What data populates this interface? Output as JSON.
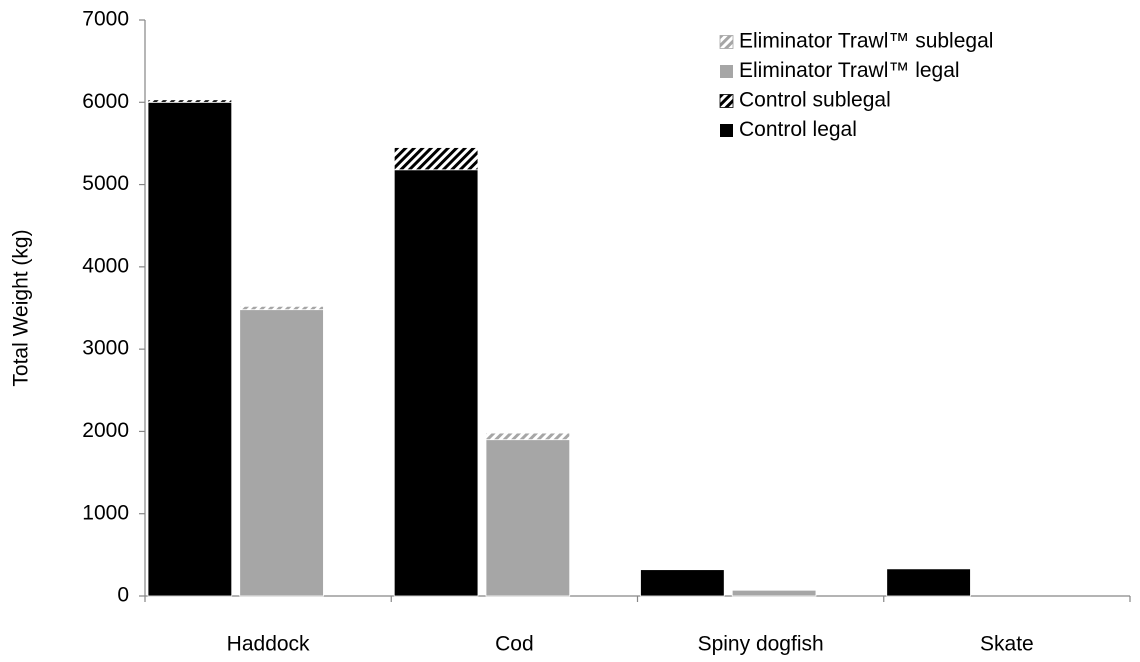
{
  "chart_data": {
    "type": "stacked_grouped_bar",
    "ylabel": "Total Weight (kg)",
    "categories": [
      "Haddock",
      "Cod",
      "Spiny dogfish",
      "Skate"
    ],
    "series": [
      {
        "name": "Control legal",
        "color": "#000000",
        "hatch": false,
        "stack": 0,
        "values": [
          6000,
          5180,
          320,
          330
        ]
      },
      {
        "name": "Control sublegal",
        "color": "#000000",
        "hatch": true,
        "stack": 0,
        "values": [
          30,
          270,
          0,
          0
        ]
      },
      {
        "name": "Eliminator Trawl™ legal",
        "color": "#a6a6a6",
        "hatch": false,
        "stack": 1,
        "values": [
          3480,
          1900,
          70,
          0
        ]
      },
      {
        "name": "Eliminator Trawl™ sublegal",
        "color": "#a6a6a6",
        "hatch": true,
        "stack": 1,
        "values": [
          40,
          80,
          0,
          0
        ]
      }
    ],
    "ylim": [
      0,
      7000
    ],
    "yticks": [
      0,
      1000,
      2000,
      3000,
      4000,
      5000,
      6000,
      7000
    ],
    "grid": false,
    "legend": "upper right"
  }
}
